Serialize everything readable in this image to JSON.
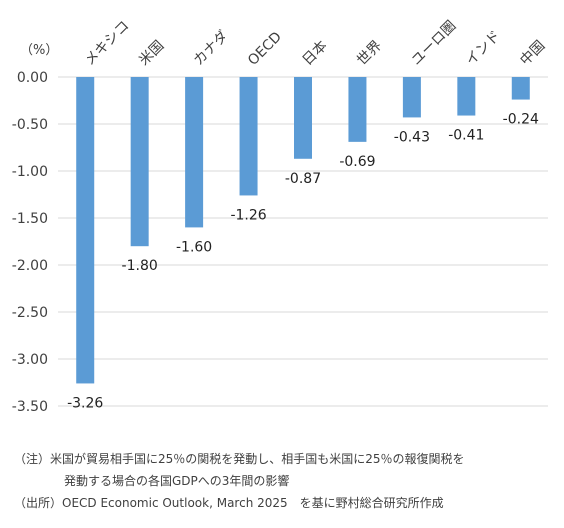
{
  "chart_data": {
    "type": "bar",
    "unit_label": "（%）",
    "categories": [
      "メキシコ",
      "米国",
      "カナダ",
      "OECD",
      "日本",
      "世界",
      "ユーロ圏",
      "インド",
      "中国"
    ],
    "values": [
      -3.26,
      -1.8,
      -1.6,
      -1.26,
      -0.87,
      -0.69,
      -0.43,
      -0.41,
      -0.24
    ],
    "value_labels": [
      "-3.26",
      "-1.80",
      "-1.60",
      "-1.26",
      "-0.87",
      "-0.69",
      "-0.43",
      "-0.41",
      "-0.24"
    ],
    "ylim": [
      -3.5,
      0
    ],
    "yticks": [
      0,
      -0.5,
      -1.0,
      -1.5,
      -2.0,
      -2.5,
      -3.0,
      -3.5
    ],
    "ytick_labels": [
      "0.00",
      "-0.50",
      "-1.00",
      "-1.50",
      "-2.00",
      "-2.50",
      "-3.00",
      "-3.50"
    ],
    "grid": true,
    "bar_color": "#5B9BD5",
    "grid_color": "#D9D9D9"
  },
  "notes": {
    "note_line1": "（注）米国が貿易相手国に25％の関税を発動し、相手国も米国に25％の報復関税を",
    "note_line2": "発動する場合の各国GDPへの3年間の影響",
    "source": "（出所）OECD Economic Outlook, March 2025　を基に野村総合研究所作成"
  }
}
